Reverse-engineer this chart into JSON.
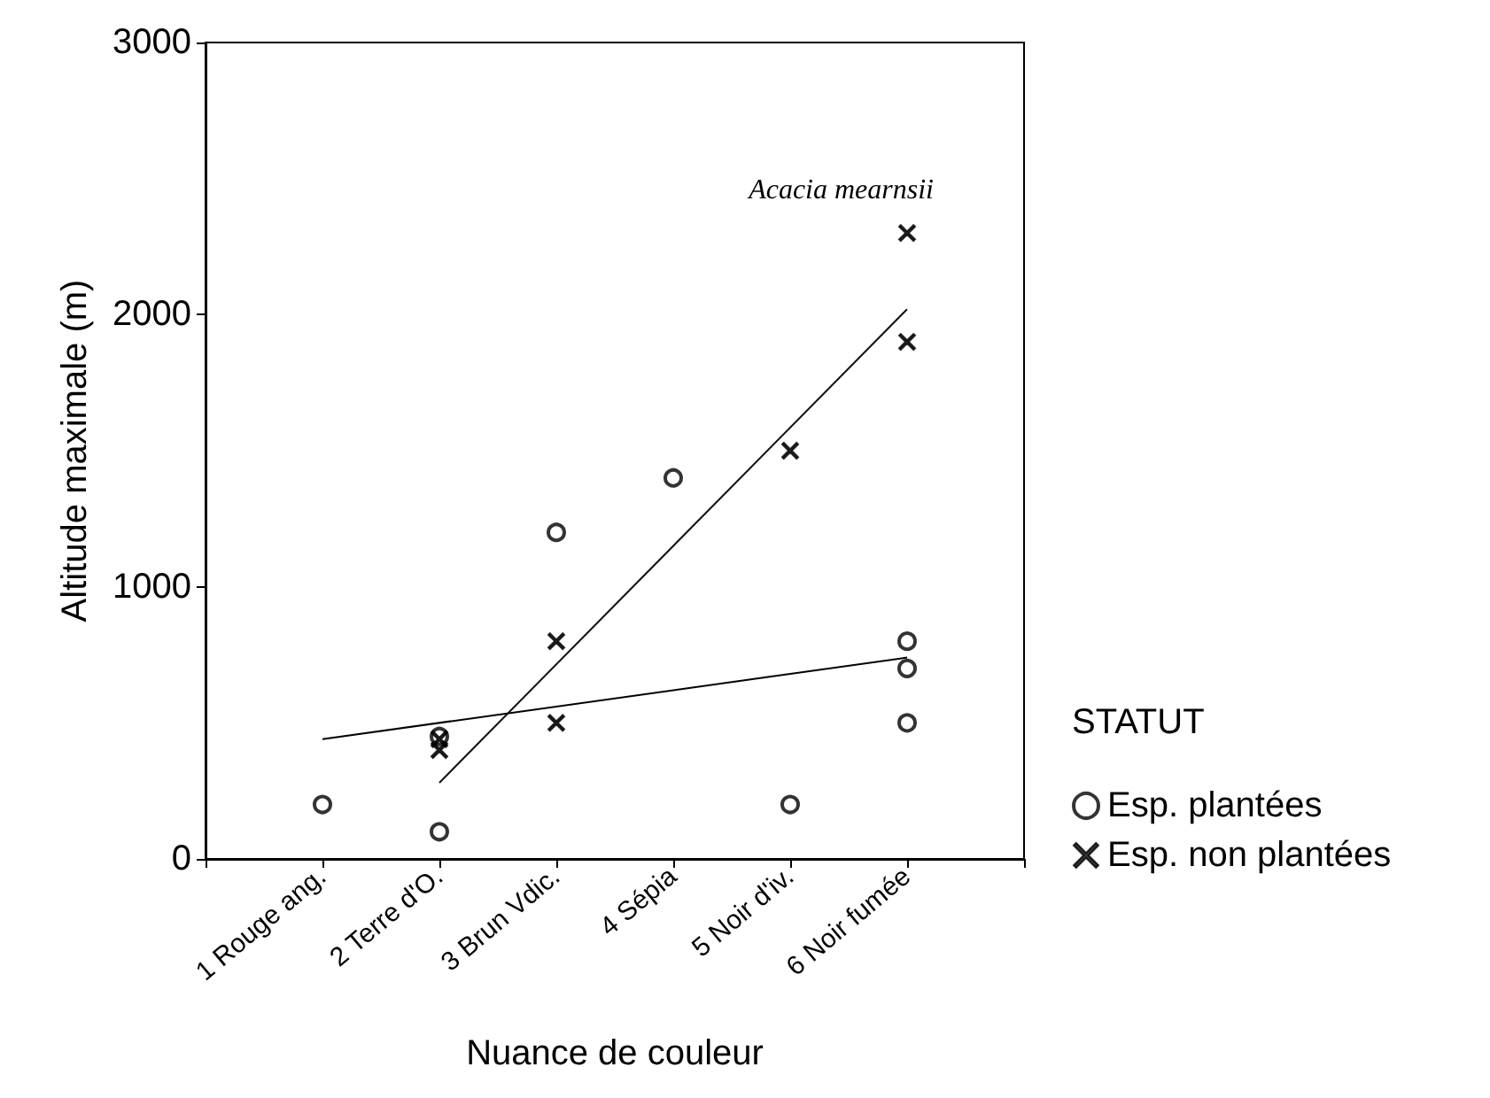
{
  "chart_data": {
    "type": "scatter",
    "xlabel": "Nuance de couleur",
    "ylabel": "Altitude maximale (m)",
    "legend_title": "STATUT",
    "legend": "right",
    "categories": [
      null,
      "1 Rouge ang.",
      "2 Terre d'O.",
      "3 Brun Vdic.",
      "4 Sépia",
      "5 Noir d'iv.",
      "6 Noir fumée",
      null
    ],
    "ylim": [
      0,
      3000
    ],
    "yticks": [
      0,
      1000,
      2000,
      3000
    ],
    "grid": false,
    "series": [
      {
        "name": "Esp. plantées",
        "color": "#000000",
        "marker": "circle",
        "x": [
          "1 Rouge ang.",
          "2 Terre d'O.",
          "2 Terre d'O.",
          "3 Brun Vdic.",
          "4 Sépia",
          "5 Noir d'iv.",
          "6 Noir fumée",
          "6 Noir fumée",
          "6 Noir fumée"
        ],
        "values": [
          200,
          450,
          100,
          1200,
          1400,
          200,
          800,
          700,
          500
        ]
      },
      {
        "name": "Esp. non plantées",
        "color": "#000000",
        "marker": "cross",
        "x": [
          "2 Terre d'O.",
          "2 Terre d'O.",
          "3 Brun Vdic.",
          "3 Brun Vdic.",
          "5 Noir d'iv.",
          "6 Noir fumée",
          "6 Noir fumée"
        ],
        "values": [
          440,
          400,
          800,
          500,
          1500,
          2300,
          1900
        ]
      },
      {
        "type": "line",
        "color": "#000000",
        "x": [
          "1 Rouge ang.",
          "6 Noir fumée"
        ],
        "values": [
          440,
          740
        ]
      },
      {
        "type": "line",
        "color": "#111111",
        "x": [
          "2 Terre d'O.",
          "6 Noir fumée"
        ],
        "values": [
          280,
          2020
        ]
      }
    ],
    "annotations": [
      {
        "text": "Acacia mearnsii",
        "x": "6 Noir fumée",
        "y": 2300
      }
    ]
  }
}
